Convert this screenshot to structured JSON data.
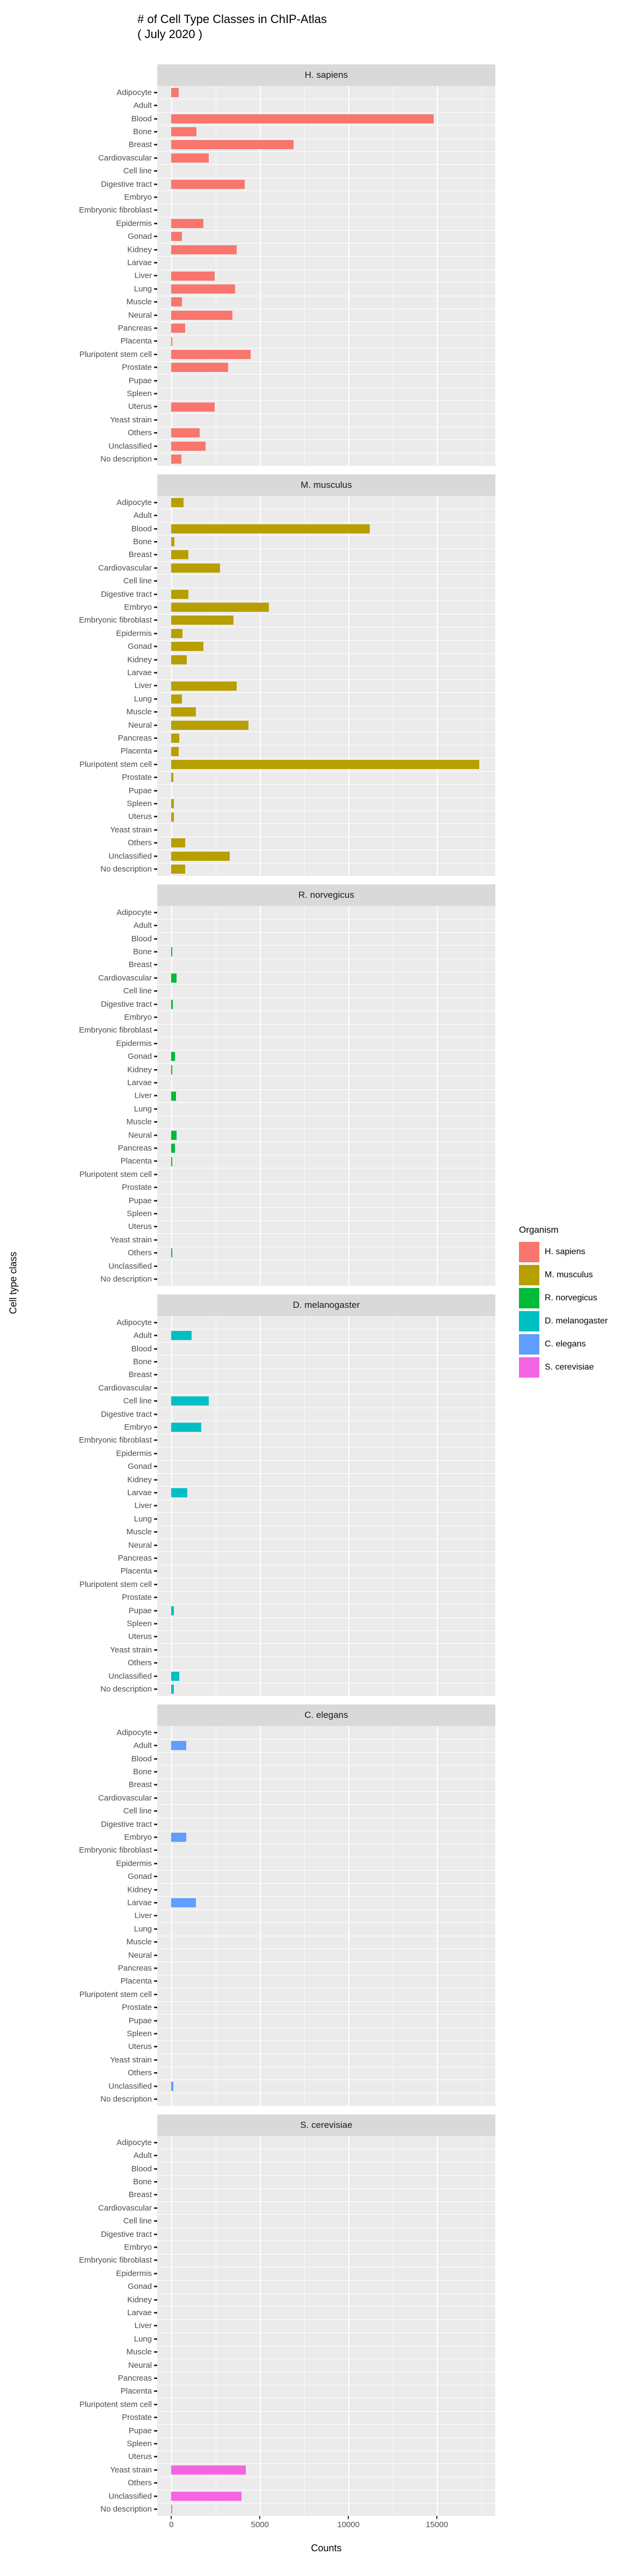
{
  "title": {
    "line1": "# of Cell Type Classes in ChIP-Atlas",
    "line2": "( July 2020 )"
  },
  "axes": {
    "x_label": "Counts",
    "y_label": "Cell type class",
    "x_ticks": [
      0,
      5000,
      10000,
      15000
    ]
  },
  "legend": {
    "title": "Organism",
    "entries": [
      {
        "label": "H. sapiens",
        "color": "#F8766D"
      },
      {
        "label": "M. musculus",
        "color": "#B79F00"
      },
      {
        "label": "R. norvegicus",
        "color": "#00BA38"
      },
      {
        "label": "D. melanogaster",
        "color": "#00BFC4"
      },
      {
        "label": "C. elegans",
        "color": "#619CFF"
      },
      {
        "label": "S. cerevisiae",
        "color": "#F564E3"
      }
    ]
  },
  "chart_data": {
    "type": "bar",
    "orientation": "horizontal",
    "title": "# of Cell Type Classes in ChIP-Atlas ( July 2020 )",
    "xlabel": "Counts",
    "ylabel": "Cell type class",
    "facet_variable": "Organism",
    "grid": true,
    "legend_position": "right",
    "panel_bg": "#EBEBEB",
    "strip_bg": "#D9D9D9",
    "x_domain": [
      -800,
      18300
    ],
    "x_major_gridlines": [
      0,
      5000,
      10000,
      15000
    ],
    "x_minor_gridlines": [
      2500,
      7500,
      12500,
      17500
    ],
    "categories": [
      "Adipocyte",
      "Adult",
      "Blood",
      "Bone",
      "Breast",
      "Cardiovascular",
      "Cell line",
      "Digestive tract",
      "Embryo",
      "Embryonic fibroblast",
      "Epidermis",
      "Gonad",
      "Kidney",
      "Larvae",
      "Liver",
      "Lung",
      "Muscle",
      "Neural",
      "Pancreas",
      "Placenta",
      "Pluripotent stem cell",
      "Prostate",
      "Pupae",
      "Spleen",
      "Uterus",
      "Yeast strain",
      "Others",
      "Unclassified",
      "No description"
    ],
    "series": [
      {
        "name": "H. sapiens",
        "color": "#F8766D",
        "values": [
          400,
          0,
          14800,
          1400,
          6900,
          2100,
          0,
          4150,
          0,
          0,
          1800,
          600,
          3700,
          0,
          2450,
          3600,
          600,
          3450,
          780,
          60,
          4470,
          3200,
          0,
          0,
          2430,
          0,
          1590,
          1920,
          550
        ]
      },
      {
        "name": "M. musculus",
        "color": "#B79F00",
        "values": [
          680,
          0,
          11200,
          180,
          950,
          2740,
          0,
          950,
          5500,
          3520,
          640,
          1820,
          860,
          0,
          3700,
          600,
          1370,
          4340,
          450,
          400,
          17400,
          100,
          0,
          150,
          150,
          0,
          770,
          3280,
          780
        ]
      },
      {
        "name": "R. norvegicus",
        "color": "#00BA38",
        "values": [
          0,
          0,
          0,
          50,
          0,
          280,
          0,
          80,
          0,
          0,
          0,
          200,
          50,
          0,
          250,
          0,
          0,
          280,
          200,
          50,
          0,
          0,
          0,
          0,
          0,
          0,
          60,
          0,
          0
        ]
      },
      {
        "name": "D. melanogaster",
        "color": "#00BFC4",
        "values": [
          0,
          1150,
          0,
          0,
          0,
          0,
          2100,
          0,
          1700,
          0,
          0,
          0,
          0,
          900,
          0,
          0,
          0,
          0,
          0,
          0,
          0,
          0,
          130,
          0,
          0,
          0,
          0,
          450,
          130
        ]
      },
      {
        "name": "C. elegans",
        "color": "#619CFF",
        "values": [
          0,
          850,
          0,
          0,
          0,
          0,
          0,
          0,
          850,
          0,
          0,
          0,
          0,
          1370,
          0,
          0,
          0,
          0,
          0,
          0,
          0,
          0,
          0,
          0,
          0,
          0,
          0,
          100,
          0
        ]
      },
      {
        "name": "S. cerevisiae",
        "color": "#F564E3",
        "values": [
          0,
          0,
          0,
          0,
          0,
          0,
          0,
          0,
          0,
          0,
          0,
          0,
          0,
          0,
          0,
          0,
          0,
          0,
          0,
          0,
          0,
          0,
          0,
          0,
          0,
          4200,
          0,
          3960,
          50
        ]
      }
    ]
  }
}
